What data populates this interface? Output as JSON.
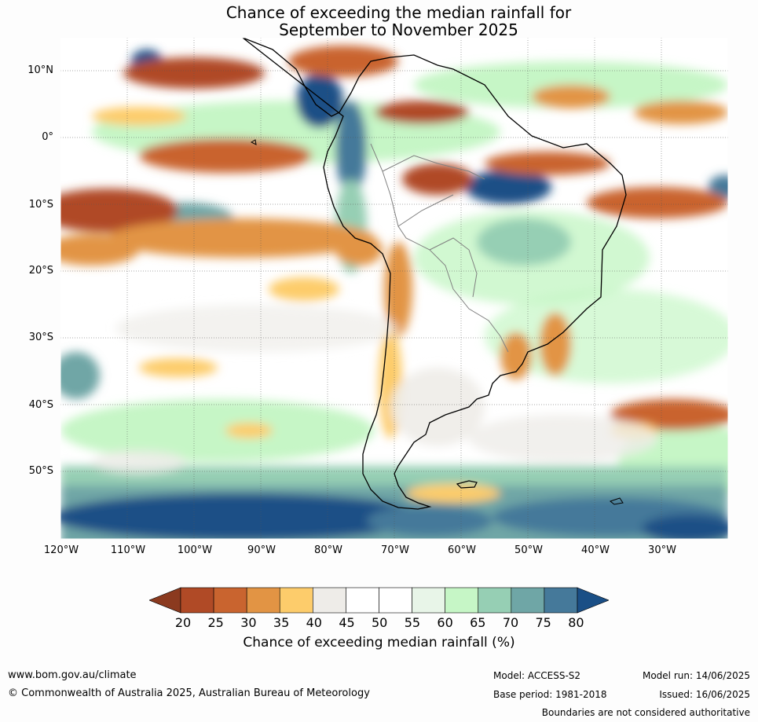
{
  "title": {
    "line1": "Chance of exceeding the median rainfall for",
    "line2": "September to November 2025"
  },
  "map": {
    "lat_labels": [
      "10°N",
      "0°",
      "10°S",
      "20°S",
      "30°S",
      "40°S",
      "50°S"
    ],
    "lon_labels": [
      "120°W",
      "110°W",
      "100°W",
      "90°W",
      "80°W",
      "70°W",
      "60°W",
      "50°W",
      "40°W",
      "30°W"
    ],
    "colors": {
      "ocean_base": "#ffffff",
      "land_outline": "#000000",
      "border": "#808080"
    }
  },
  "colorbar": {
    "label": "Chance of exceeding median rainfall (%)",
    "ticks": [
      "20",
      "25",
      "30",
      "35",
      "40",
      "45",
      "50",
      "55",
      "60",
      "65",
      "70",
      "75",
      "80"
    ],
    "colors": [
      "#8b3a1f",
      "#b04a26",
      "#c9642f",
      "#e29444",
      "#fdcc6b",
      "#eeece8",
      "#ffffff",
      "#ffffff",
      "#e8f5e8",
      "#c6f6c6",
      "#96cfb4",
      "#6fa6a6",
      "#45799a",
      "#1a4f86"
    ]
  },
  "footer": {
    "url": "www.bom.gov.au/climate",
    "copyright": "© Commonwealth of Australia 2025, Australian Bureau of Meteorology",
    "model": "Model: ACCESS-S2",
    "base_period": "Base period: 1981-2018",
    "model_run": "Model run: 14/06/2025",
    "issued": "Issued: 16/06/2025",
    "disclaimer": "Boundaries are not considered authoritative"
  }
}
